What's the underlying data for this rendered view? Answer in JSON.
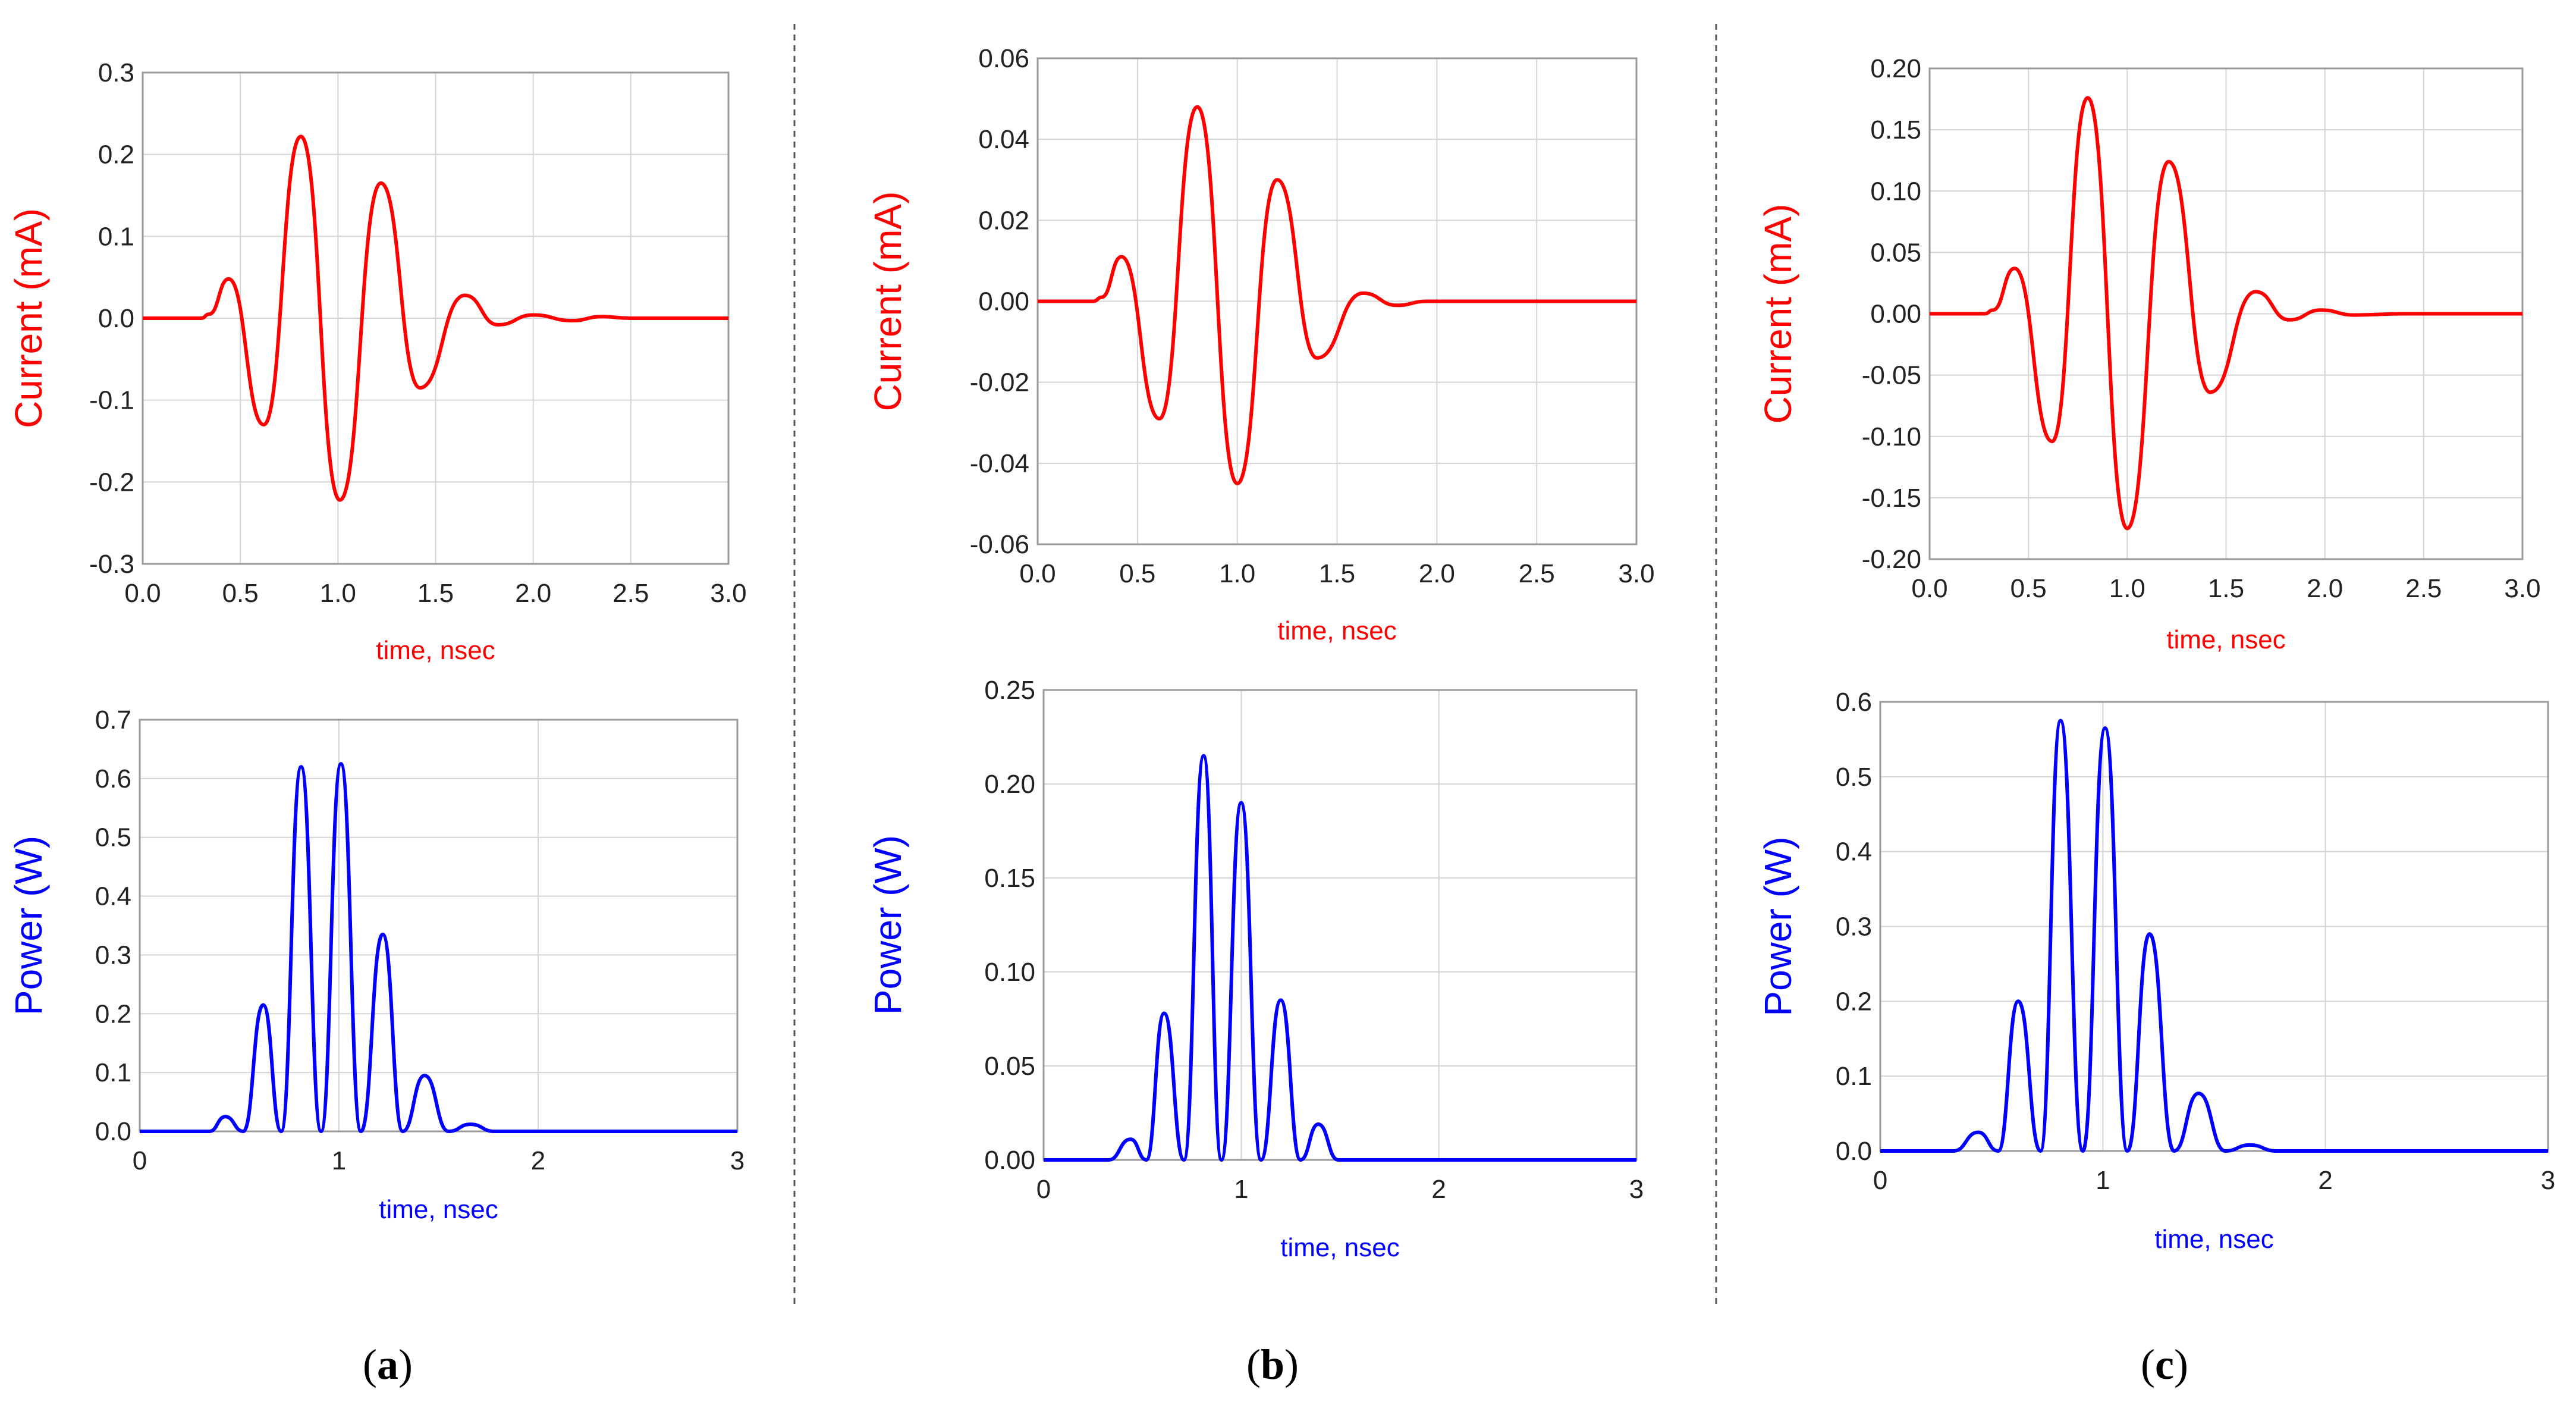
{
  "figure": {
    "captions": [
      {
        "open": "(",
        "letter": "a",
        "close": ")"
      },
      {
        "open": "(",
        "letter": "b",
        "close": ")"
      },
      {
        "open": "(",
        "letter": "c",
        "close": ")"
      }
    ]
  },
  "colors": {
    "current": "#ff0000",
    "power": "#0000ff",
    "grid": "#d4d4d4",
    "frame": "#9a9a9a",
    "divider": "#555555"
  },
  "chart_data": [
    {
      "id": "a-current",
      "panel": "a",
      "type": "line",
      "title": "",
      "xlabel": "time, nsec",
      "ylabel": "Current (mA)",
      "xlim": [
        0,
        3
      ],
      "ylim": [
        -0.3,
        0.3
      ],
      "xticks": [
        "0.0",
        "0.5",
        "1.0",
        "1.5",
        "2.0",
        "2.5",
        "3.0"
      ],
      "yticks": [
        "-0.3",
        "-0.2",
        "-0.1",
        "0.0",
        "0.1",
        "0.2",
        "0.3"
      ],
      "series": [
        {
          "name": "Current",
          "x": [
            0,
            0.3,
            0.34,
            0.44,
            0.62,
            0.81,
            1.01,
            1.22,
            1.42,
            1.65,
            1.82,
            2.0,
            2.2,
            2.35,
            2.5,
            3.0
          ],
          "y": [
            0,
            0,
            0.005,
            0.048,
            -0.13,
            0.222,
            -0.222,
            0.165,
            -0.085,
            0.028,
            -0.008,
            0.004,
            -0.003,
            0.002,
            0,
            0
          ]
        }
      ]
    },
    {
      "id": "a-power",
      "panel": "a",
      "type": "line",
      "title": "",
      "xlabel": "time, nsec",
      "ylabel": "Power (W)",
      "xlim": [
        0,
        3
      ],
      "ylim": [
        0,
        0.7
      ],
      "xticks": [
        "0",
        "1",
        "2",
        "3"
      ],
      "yticks": [
        "0.0",
        "0.1",
        "0.2",
        "0.3",
        "0.4",
        "0.5",
        "0.6",
        "0.7"
      ],
      "series": [
        {
          "name": "Power",
          "x": [
            0,
            0.35,
            0.43,
            0.52,
            0.62,
            0.71,
            0.81,
            0.91,
            1.01,
            1.11,
            1.22,
            1.32,
            1.43,
            1.55,
            1.66,
            1.78,
            3.0
          ],
          "y": [
            0,
            0,
            0.025,
            0,
            0.215,
            0,
            0.62,
            0,
            0.625,
            0,
            0.335,
            0,
            0.095,
            0,
            0.012,
            0,
            0
          ]
        }
      ]
    },
    {
      "id": "b-current",
      "panel": "b",
      "type": "line",
      "title": "",
      "xlabel": "time, nsec",
      "ylabel": "Current (mA)",
      "xlim": [
        0,
        3
      ],
      "ylim": [
        -0.06,
        0.06
      ],
      "xticks": [
        "0.0",
        "0.5",
        "1.0",
        "1.5",
        "2.0",
        "2.5",
        "3.0"
      ],
      "yticks": [
        "-0.06",
        "-0.04",
        "-0.02",
        "0.00",
        "0.02",
        "0.04",
        "0.06"
      ],
      "series": [
        {
          "name": "Current",
          "x": [
            0,
            0.28,
            0.32,
            0.42,
            0.61,
            0.8,
            1.0,
            1.2,
            1.4,
            1.63,
            1.8,
            1.95,
            2.1,
            2.3,
            3.0
          ],
          "y": [
            0,
            0,
            0.001,
            0.011,
            -0.029,
            0.048,
            -0.045,
            0.03,
            -0.014,
            0.002,
            -0.001,
            0,
            0,
            0,
            0
          ]
        }
      ]
    },
    {
      "id": "b-power",
      "panel": "b",
      "type": "line",
      "title": "",
      "xlabel": "time, nsec",
      "ylabel": "Power (W)",
      "xlim": [
        0,
        3
      ],
      "ylim": [
        0,
        0.25
      ],
      "xticks": [
        "0",
        "1",
        "2",
        "3"
      ],
      "yticks": [
        "0.00",
        "0.05",
        "0.10",
        "0.15",
        "0.20",
        "0.25"
      ],
      "series": [
        {
          "name": "Power",
          "x": [
            0,
            0.33,
            0.44,
            0.52,
            0.61,
            0.71,
            0.81,
            0.9,
            1.0,
            1.1,
            1.2,
            1.3,
            1.39,
            1.49,
            3.0
          ],
          "y": [
            0,
            0,
            0.011,
            0,
            0.078,
            0,
            0.215,
            0,
            0.19,
            0,
            0.085,
            0,
            0.019,
            0,
            0
          ]
        }
      ]
    },
    {
      "id": "c-current",
      "panel": "c",
      "type": "line",
      "title": "",
      "xlabel": "time, nsec",
      "ylabel": "Current (mA)",
      "xlim": [
        0,
        3
      ],
      "ylim": [
        -0.2,
        0.2
      ],
      "xticks": [
        "0.0",
        "0.5",
        "1.0",
        "1.5",
        "2.0",
        "2.5",
        "3.0"
      ],
      "yticks": [
        "-0.20",
        "-0.15",
        "-0.10",
        "-0.05",
        "0.00",
        "0.05",
        "0.10",
        "0.15",
        "0.20"
      ],
      "series": [
        {
          "name": "Current",
          "x": [
            0,
            0.28,
            0.32,
            0.43,
            0.62,
            0.8,
            1.0,
            1.21,
            1.42,
            1.65,
            1.82,
            1.98,
            2.15,
            2.4,
            3.0
          ],
          "y": [
            0,
            0,
            0.003,
            0.037,
            -0.104,
            0.176,
            -0.175,
            0.124,
            -0.064,
            0.018,
            -0.005,
            0.003,
            -0.001,
            0,
            0
          ]
        }
      ]
    },
    {
      "id": "c-power",
      "panel": "c",
      "type": "line",
      "title": "",
      "xlabel": "time, nsec",
      "ylabel": "Power (W)",
      "xlim": [
        0,
        3
      ],
      "ylim": [
        0,
        0.6
      ],
      "xticks": [
        "0",
        "1",
        "2",
        "3"
      ],
      "yticks": [
        "0.0",
        "0.1",
        "0.2",
        "0.3",
        "0.4",
        "0.5",
        "0.6"
      ],
      "series": [
        {
          "name": "Power",
          "x": [
            0,
            0.33,
            0.44,
            0.53,
            0.62,
            0.72,
            0.81,
            0.91,
            1.01,
            1.11,
            1.21,
            1.32,
            1.43,
            1.55,
            1.66,
            1.78,
            3.0
          ],
          "y": [
            0,
            0,
            0.025,
            0,
            0.2,
            0,
            0.575,
            0,
            0.565,
            0,
            0.29,
            0,
            0.077,
            0,
            0.008,
            0,
            0
          ]
        }
      ]
    }
  ]
}
